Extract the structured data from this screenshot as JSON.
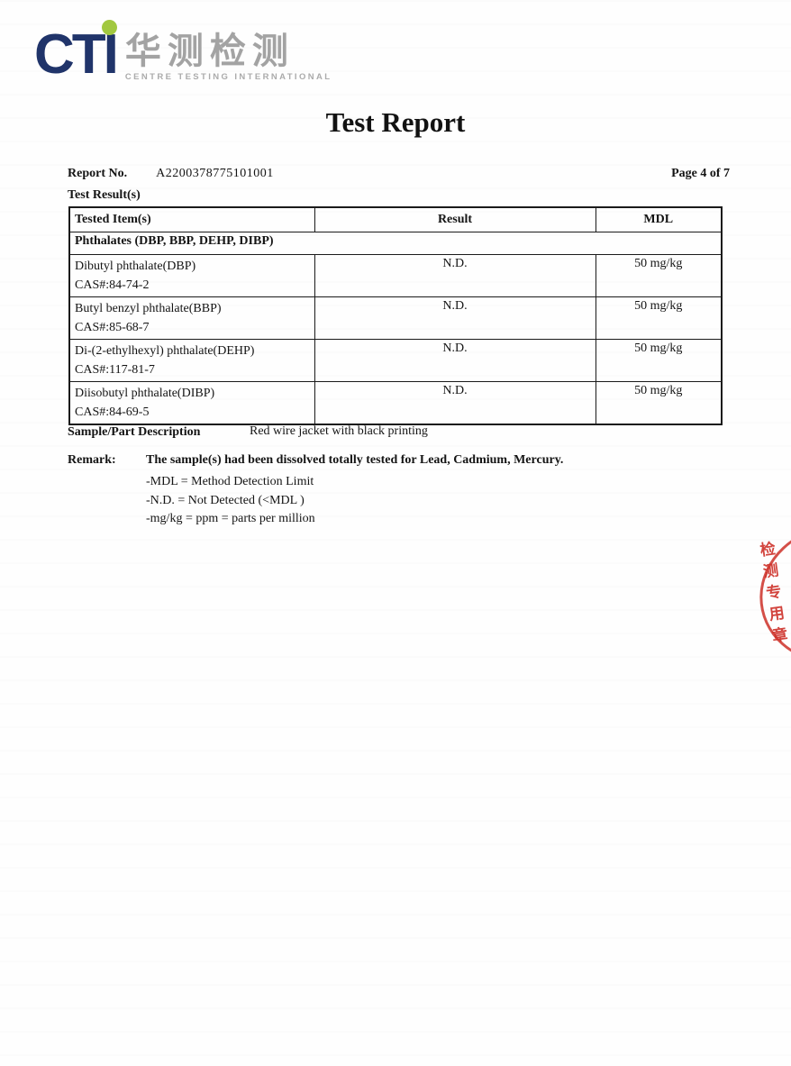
{
  "logo": {
    "acronym": "CTI",
    "chinese_name": "华测检测",
    "subtitle": "CENTRE TESTING INTERNATIONAL"
  },
  "header": {
    "title": "Test Report",
    "report_no_label": "Report No.",
    "report_no": "A2200378775101001",
    "page_indicator": "Page 4 of 7",
    "section_label": "Test Result(s)"
  },
  "table": {
    "headers": [
      "Tested Item(s)",
      "Result",
      "MDL"
    ],
    "group_header": "Phthalates (DBP, BBP, DEHP, DIBP)",
    "rows": [
      {
        "item": "Dibutyl phthalate(DBP)",
        "cas": "CAS#:84-74-2",
        "result": "N.D.",
        "mdl": "50 mg/kg"
      },
      {
        "item": "Butyl benzyl phthalate(BBP)",
        "cas": "CAS#:85-68-7",
        "result": "N.D.",
        "mdl": "50 mg/kg"
      },
      {
        "item": "Di-(2-ethylhexyl) phthalate(DEHP)",
        "cas": "CAS#:117-81-7",
        "result": "N.D.",
        "mdl": "50 mg/kg"
      },
      {
        "item": "Diisobutyl phthalate(DIBP)",
        "cas": "CAS#:84-69-5",
        "result": "N.D.",
        "mdl": "50 mg/kg"
      }
    ]
  },
  "sample": {
    "label": "Sample/Part Description",
    "value": "Red wire jacket with black printing"
  },
  "remark": {
    "label": "Remark:",
    "main": "The sample(s) had been dissolved totally tested for Lead, Cadmium, Mercury.",
    "bullets": [
      "-MDL = Method Detection Limit",
      "-N.D. = Not Detected (<MDL )",
      "-mg/kg = ppm = parts per million"
    ]
  },
  "stamp": {
    "text": "检测专用章"
  },
  "colors": {
    "logo_navy": "#20346a",
    "logo_green": "#a2c840",
    "logo_gray": "#a3a3a3",
    "stamp_red": "#cd3028",
    "text_black": "#141414"
  }
}
